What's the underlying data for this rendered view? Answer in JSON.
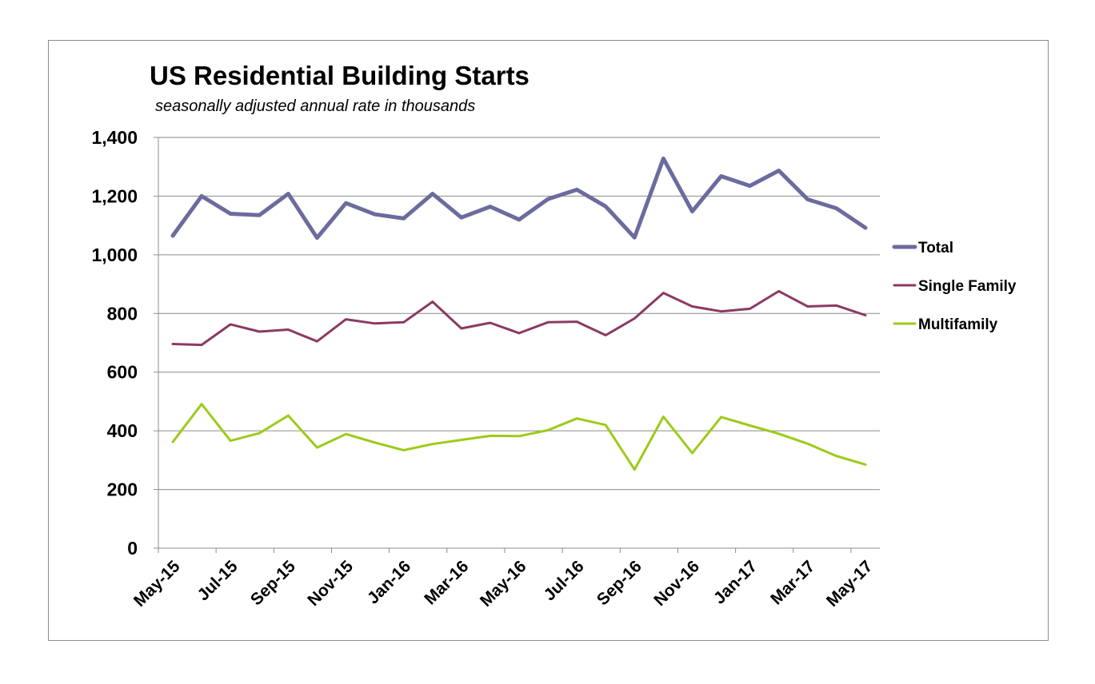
{
  "chart_data": {
    "type": "line",
    "title": "US Residential Building Starts",
    "subtitle": "seasonally adjusted annual rate in thousands",
    "xlabel": "",
    "ylabel": "",
    "ylim": [
      0,
      1400
    ],
    "yticks": [
      "0",
      "200",
      "400",
      "600",
      "800",
      "1,000",
      "1,200",
      "1,400"
    ],
    "ytick_values": [
      0,
      200,
      400,
      600,
      800,
      1000,
      1200,
      1400
    ],
    "x": [
      "May-15",
      "Jun-15",
      "Jul-15",
      "Aug-15",
      "Sep-15",
      "Oct-15",
      "Nov-15",
      "Dec-15",
      "Jan-16",
      "Feb-16",
      "Mar-16",
      "Apr-16",
      "May-16",
      "Jun-16",
      "Jul-16",
      "Aug-16",
      "Sep-16",
      "Oct-16",
      "Nov-16",
      "Dec-16",
      "Jan-17",
      "Feb-17",
      "Mar-17",
      "Apr-17",
      "May-17"
    ],
    "xtick_labels": [
      "May-15",
      "Jul-15",
      "Sep-15",
      "Nov-15",
      "Jan-16",
      "Mar-16",
      "May-16",
      "Jul-16",
      "Sep-16",
      "Nov-16",
      "Jan-17",
      "Mar-17",
      "May-17"
    ],
    "grid": true,
    "legend_position": "right",
    "series": [
      {
        "name": "Total",
        "color": "#6b6b9e",
        "values": [
          1065,
          1200,
          1140,
          1135,
          1208,
          1058,
          1176,
          1138,
          1124,
          1208,
          1127,
          1164,
          1120,
          1190,
          1222,
          1165,
          1059,
          1328,
          1148,
          1268,
          1235,
          1287,
          1189,
          1158,
          1092
        ]
      },
      {
        "name": "Single Family",
        "color": "#8b3a62",
        "values": [
          696,
          693,
          763,
          738,
          745,
          705,
          780,
          766,
          770,
          840,
          749,
          768,
          733,
          770,
          772,
          726,
          783,
          870,
          824,
          807,
          816,
          876,
          824,
          827,
          794
        ]
      },
      {
        "name": "Multifamily",
        "color": "#9ccb19",
        "values": [
          362,
          491,
          366,
          392,
          452,
          343,
          389,
          360,
          334,
          355,
          369,
          383,
          382,
          402,
          442,
          420,
          268,
          448,
          324,
          447,
          418,
          390,
          356,
          314,
          285
        ]
      }
    ]
  }
}
